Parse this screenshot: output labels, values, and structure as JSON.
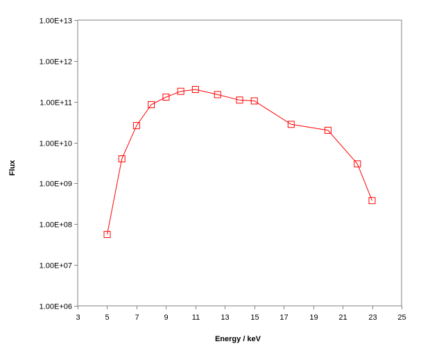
{
  "chart_data": {
    "type": "scatter",
    "title": "",
    "xlabel": "Energy / keV",
    "ylabel": "Flux",
    "xlim": [
      3,
      25
    ],
    "ylim": [
      1000000,
      10000000000000
    ],
    "y_scale": "log",
    "grid": "horizontal",
    "legend": "none",
    "x_ticks": [
      "3",
      "5",
      "7",
      "9",
      "11",
      "13",
      "15",
      "17",
      "19",
      "21",
      "23",
      "25"
    ],
    "x_tick_values": [
      3,
      5,
      7,
      9,
      11,
      13,
      15,
      17,
      19,
      21,
      23,
      25
    ],
    "y_ticks": [
      "1.00E+06",
      "1.00E+07",
      "1.00E+08",
      "1.00E+09",
      "1.00E+10",
      "1.00E+11",
      "1.00E+12",
      "1.00E+13"
    ],
    "y_tick_values": [
      1000000,
      10000000,
      100000000,
      1000000000,
      10000000000,
      100000000000,
      1000000000000,
      10000000000000
    ],
    "series": [
      {
        "marker": "open-square",
        "color": "#ff0000",
        "x": [
          5,
          6,
          7,
          8,
          9,
          10,
          11,
          12.5,
          14,
          15,
          17.5,
          20,
          22,
          23
        ],
        "y": [
          56000000,
          4000000000,
          26000000000,
          85000000000,
          130000000000,
          180000000000,
          200000000000,
          150000000000,
          110000000000,
          105000000000,
          28000000000,
          20000000000,
          3000000000,
          380000000
        ]
      }
    ]
  }
}
